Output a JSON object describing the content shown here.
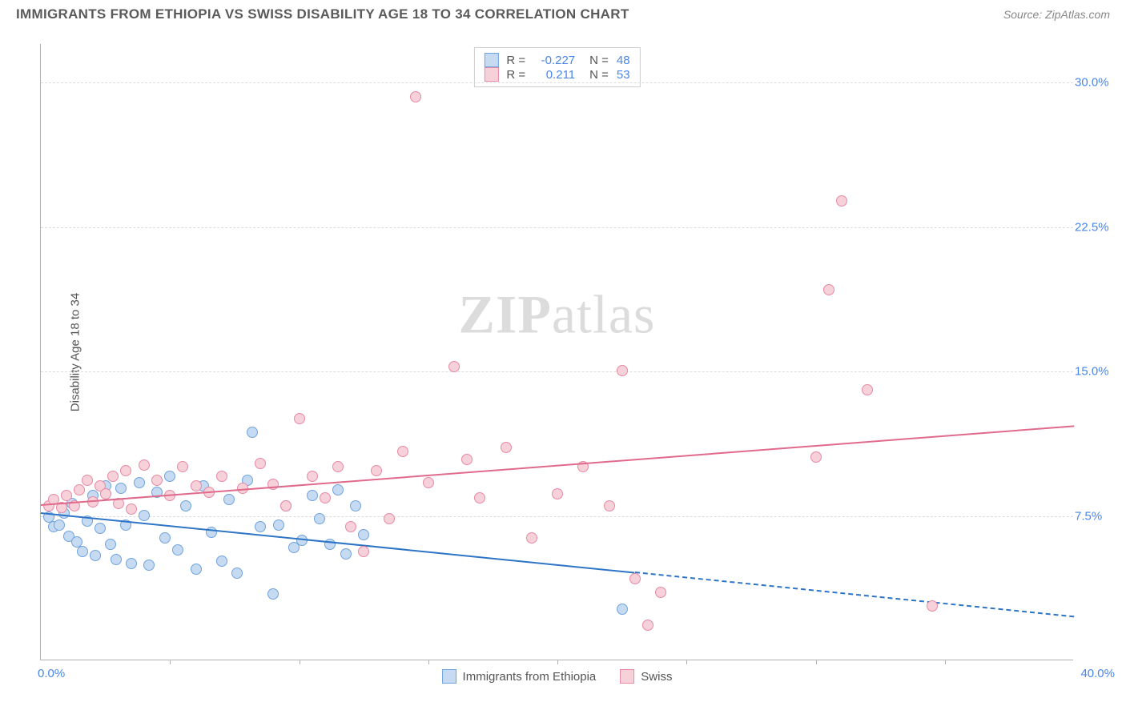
{
  "header": {
    "title": "IMMIGRANTS FROM ETHIOPIA VS SWISS DISABILITY AGE 18 TO 34 CORRELATION CHART",
    "source_prefix": "Source: ",
    "source_link": "ZipAtlas.com"
  },
  "watermark": {
    "bold": "ZIP",
    "light": "atlas"
  },
  "chart": {
    "type": "scatter",
    "ylabel": "Disability Age 18 to 34",
    "background": "#ffffff",
    "grid_color": "#dcdcdc",
    "axis_color": "#b0b0b0",
    "tick_label_color": "#4a86e8",
    "xlim": [
      0,
      40
    ],
    "ylim": [
      0,
      32
    ],
    "yticks": [
      {
        "value": 7.5,
        "label": "7.5%"
      },
      {
        "value": 15.0,
        "label": "15.0%"
      },
      {
        "value": 22.5,
        "label": "22.5%"
      },
      {
        "value": 30.0,
        "label": "30.0%"
      }
    ],
    "xtick_step": 5,
    "x_origin_label": "0.0%",
    "x_end_label": "40.0%",
    "marker_radius": 7,
    "series": [
      {
        "name": "Immigrants from Ethiopia",
        "fill": "#c6dbf2",
        "stroke": "#6fa3dd",
        "line_color": "#2e75c6",
        "r_value": "-0.227",
        "n_value": "48",
        "trend": {
          "x1": 0,
          "y1": 7.7,
          "x2": 23,
          "y2": 4.6,
          "x2_dash": 40,
          "y2_dash": 2.3
        },
        "points": [
          [
            0.3,
            7.4
          ],
          [
            0.5,
            6.9
          ],
          [
            0.7,
            7.0
          ],
          [
            0.9,
            7.6
          ],
          [
            1.1,
            6.4
          ],
          [
            1.2,
            8.1
          ],
          [
            1.4,
            6.1
          ],
          [
            1.6,
            5.6
          ],
          [
            1.8,
            7.2
          ],
          [
            2.0,
            8.5
          ],
          [
            2.1,
            5.4
          ],
          [
            2.3,
            6.8
          ],
          [
            2.5,
            9.0
          ],
          [
            2.7,
            6.0
          ],
          [
            2.9,
            5.2
          ],
          [
            3.1,
            8.9
          ],
          [
            3.3,
            7.0
          ],
          [
            3.5,
            5.0
          ],
          [
            3.8,
            9.2
          ],
          [
            4.0,
            7.5
          ],
          [
            4.2,
            4.9
          ],
          [
            4.5,
            8.7
          ],
          [
            4.8,
            6.3
          ],
          [
            5.0,
            9.5
          ],
          [
            5.3,
            5.7
          ],
          [
            5.6,
            8.0
          ],
          [
            6.0,
            4.7
          ],
          [
            6.3,
            9.0
          ],
          [
            6.6,
            6.6
          ],
          [
            7.0,
            5.1
          ],
          [
            7.3,
            8.3
          ],
          [
            7.6,
            4.5
          ],
          [
            8.0,
            9.3
          ],
          [
            8.2,
            11.8
          ],
          [
            8.5,
            6.9
          ],
          [
            9.0,
            3.4
          ],
          [
            9.2,
            7.0
          ],
          [
            9.5,
            8.0
          ],
          [
            9.8,
            5.8
          ],
          [
            10.1,
            6.2
          ],
          [
            10.5,
            8.5
          ],
          [
            10.8,
            7.3
          ],
          [
            11.2,
            6.0
          ],
          [
            11.5,
            8.8
          ],
          [
            11.8,
            5.5
          ],
          [
            12.2,
            8.0
          ],
          [
            12.5,
            6.5
          ],
          [
            22.5,
            2.6
          ]
        ]
      },
      {
        "name": "Swiss",
        "fill": "#f7d1da",
        "stroke": "#e68aa3",
        "line_color": "#e06a8c",
        "r_value": "0.211",
        "n_value": "53",
        "trend": {
          "x1": 0,
          "y1": 8.1,
          "x2": 40,
          "y2": 12.2
        },
        "points": [
          [
            0.3,
            8.0
          ],
          [
            0.5,
            8.3
          ],
          [
            0.8,
            7.9
          ],
          [
            1.0,
            8.5
          ],
          [
            1.3,
            8.0
          ],
          [
            1.5,
            8.8
          ],
          [
            1.8,
            9.3
          ],
          [
            2.0,
            8.2
          ],
          [
            2.3,
            9.0
          ],
          [
            2.5,
            8.6
          ],
          [
            2.8,
            9.5
          ],
          [
            3.0,
            8.1
          ],
          [
            3.3,
            9.8
          ],
          [
            3.5,
            7.8
          ],
          [
            4.0,
            10.1
          ],
          [
            4.5,
            9.3
          ],
          [
            5.0,
            8.5
          ],
          [
            5.5,
            10.0
          ],
          [
            6.0,
            9.0
          ],
          [
            6.5,
            8.7
          ],
          [
            7.0,
            9.5
          ],
          [
            7.8,
            8.9
          ],
          [
            8.5,
            10.2
          ],
          [
            9.0,
            9.1
          ],
          [
            9.5,
            8.0
          ],
          [
            10.0,
            12.5
          ],
          [
            10.5,
            9.5
          ],
          [
            11.0,
            8.4
          ],
          [
            11.5,
            10.0
          ],
          [
            12.0,
            6.9
          ],
          [
            12.5,
            5.6
          ],
          [
            13.0,
            9.8
          ],
          [
            13.5,
            7.3
          ],
          [
            14.0,
            10.8
          ],
          [
            14.5,
            29.2
          ],
          [
            15.0,
            9.2
          ],
          [
            16.0,
            15.2
          ],
          [
            16.5,
            10.4
          ],
          [
            17.0,
            8.4
          ],
          [
            18.0,
            11.0
          ],
          [
            19.0,
            6.3
          ],
          [
            20.0,
            8.6
          ],
          [
            21.0,
            10.0
          ],
          [
            22.0,
            8.0
          ],
          [
            22.5,
            15.0
          ],
          [
            23.0,
            4.2
          ],
          [
            23.5,
            1.8
          ],
          [
            24.0,
            3.5
          ],
          [
            30.0,
            10.5
          ],
          [
            30.5,
            19.2
          ],
          [
            31.0,
            23.8
          ],
          [
            32.0,
            14.0
          ],
          [
            34.5,
            2.8
          ]
        ]
      }
    ],
    "legend_top": {
      "r_label": "R =",
      "n_label": "N ="
    }
  }
}
